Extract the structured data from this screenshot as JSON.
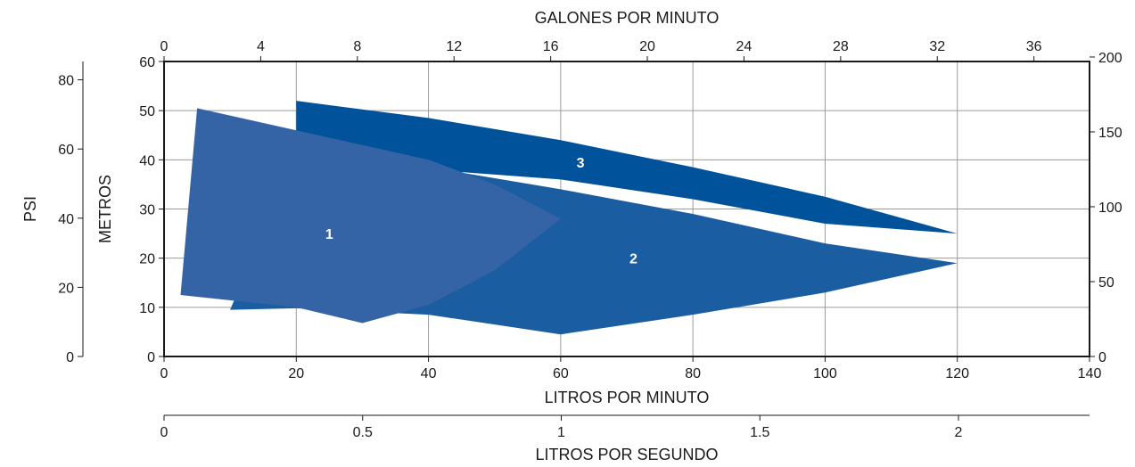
{
  "chart_data": {
    "type": "area",
    "top_axis": {
      "title": "GALONES POR MINUTO",
      "range": [
        0,
        38.3
      ],
      "ticks": [
        0,
        4,
        8,
        12,
        16,
        20,
        24,
        28,
        32,
        36
      ],
      "tick_labels": [
        "0",
        "4",
        "8",
        "12",
        "16",
        "20",
        "24",
        "28",
        "32",
        "36"
      ]
    },
    "x_axis": {
      "title": "LITROS POR MINUTO",
      "range": [
        0,
        140
      ],
      "ticks": [
        0,
        20,
        40,
        60,
        80,
        100,
        120,
        140
      ],
      "tick_labels": [
        "0",
        "20",
        "40",
        "60",
        "80",
        "100",
        "120",
        "140"
      ]
    },
    "bottom_axis": {
      "title": "LITROS POR SEGUNDO",
      "range": [
        0,
        2.33
      ],
      "ticks": [
        0,
        0.5,
        1,
        1.5,
        2
      ],
      "tick_labels": [
        "0",
        "0.5",
        "1",
        "1.5",
        "2"
      ]
    },
    "y_axis": {
      "title": "METROS",
      "range": [
        0,
        60
      ],
      "ticks": [
        0,
        10,
        20,
        30,
        40,
        50,
        60
      ],
      "tick_labels": [
        "0",
        "10",
        "20",
        "30",
        "40",
        "50",
        "60"
      ]
    },
    "psi_axis": {
      "title": "PSI",
      "range": [
        0,
        85.3
      ],
      "ticks": [
        0,
        20,
        40,
        60,
        80
      ],
      "tick_labels": [
        "0",
        "20",
        "40",
        "60",
        "80"
      ]
    },
    "right_axis": {
      "title": "",
      "range": [
        0,
        197
      ],
      "ticks": [
        0,
        50,
        100,
        150,
        200
      ],
      "tick_labels": [
        "0",
        "50",
        "100",
        "150",
        "200"
      ]
    },
    "grid": true,
    "regions": [
      {
        "label": "3",
        "color": "#00529b",
        "label_at": [
          63,
          39.5
        ],
        "outline": [
          [
            20,
            52
          ],
          [
            40,
            48.5
          ],
          [
            60,
            44
          ],
          [
            80,
            38.5
          ],
          [
            100,
            32.5
          ],
          [
            120,
            25
          ],
          [
            100,
            27
          ],
          [
            80,
            32
          ],
          [
            60,
            36
          ],
          [
            40,
            38
          ],
          [
            20,
            40.5
          ]
        ]
      },
      {
        "label": "2",
        "color": "#1a5da1",
        "label_at": [
          71,
          20
        ],
        "outline": [
          [
            10,
            9.5
          ],
          [
            20,
            9.8
          ],
          [
            40,
            8.5
          ],
          [
            60,
            4.5
          ],
          [
            80,
            8.5
          ],
          [
            100,
            13
          ],
          [
            120,
            19
          ],
          [
            100,
            23
          ],
          [
            80,
            29
          ],
          [
            60,
            34
          ],
          [
            40,
            38.5
          ],
          [
            20,
            41
          ]
        ]
      },
      {
        "label": "1",
        "color": "#3564a6",
        "label_at": [
          25,
          25
        ],
        "outline": [
          [
            2.5,
            12.5
          ],
          [
            20,
            10
          ],
          [
            30,
            6.8
          ],
          [
            40,
            10.5
          ],
          [
            50,
            17.5
          ],
          [
            60,
            28
          ],
          [
            50,
            35
          ],
          [
            40,
            40
          ],
          [
            20,
            46
          ],
          [
            5,
            50.5
          ]
        ]
      }
    ]
  }
}
